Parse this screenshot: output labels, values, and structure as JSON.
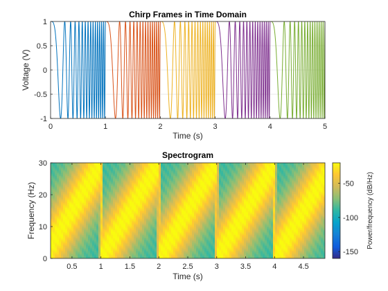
{
  "chart_data": [
    {
      "type": "line",
      "title": "Chirp Frames in Time Domain",
      "xlabel": "Time (s)",
      "ylabel": "Voltage (V)",
      "xlim": [
        0,
        5
      ],
      "ylim": [
        -1,
        1
      ],
      "xticks": [
        0,
        1,
        2,
        3,
        4,
        5
      ],
      "yticks": [
        -1,
        -0.5,
        0,
        0.5,
        1
      ],
      "xtick_labels": [
        "0",
        "1",
        "2",
        "3",
        "4",
        "5"
      ],
      "ytick_labels": [
        "-1",
        "-0.5",
        "0",
        "0.5",
        "1"
      ],
      "grid": true,
      "signal": {
        "kind": "linear chirp cosine",
        "amplitude": 1,
        "f0_hz": 0,
        "f1_hz": 30,
        "frame_duration_s": 1
      },
      "series": [
        {
          "t_start": 0,
          "t_end": 1,
          "color": "#0072BD"
        },
        {
          "t_start": 1,
          "t_end": 2,
          "color": "#D95319"
        },
        {
          "t_start": 2,
          "t_end": 3,
          "color": "#EDB120"
        },
        {
          "t_start": 3,
          "t_end": 4,
          "color": "#7E2F8E"
        },
        {
          "t_start": 4,
          "t_end": 5,
          "color": "#77AC30"
        }
      ]
    },
    {
      "type": "heatmap",
      "title": "Spectrogram",
      "xlabel": "Time (s)",
      "ylabel": "Frequency (Hz)",
      "xlim": [
        0.13,
        4.87
      ],
      "ylim": [
        0,
        30
      ],
      "xticks": [
        0.5,
        1,
        1.5,
        2,
        2.5,
        3,
        3.5,
        4,
        4.5
      ],
      "xtick_labels": [
        "0.5",
        "1",
        "1.5",
        "2",
        "2.5",
        "3",
        "3.5",
        "4",
        "4.5"
      ],
      "yticks": [
        0,
        10,
        20,
        30
      ],
      "ytick_labels": [
        "0",
        "10",
        "20",
        "30"
      ],
      "frame_boundaries_s": [
        1,
        2,
        3,
        4
      ],
      "sweep": {
        "f0_hz": 0,
        "f1_hz": 30,
        "frame_duration_s": 1
      },
      "colorbar": {
        "label": "Power/frequency (dB/Hz)",
        "clim": [
          -160,
          -20
        ],
        "ticks": [
          -150,
          -100,
          -50
        ],
        "tick_labels": [
          "-150",
          "-100",
          "-50"
        ],
        "colormap": "parula"
      }
    }
  ]
}
